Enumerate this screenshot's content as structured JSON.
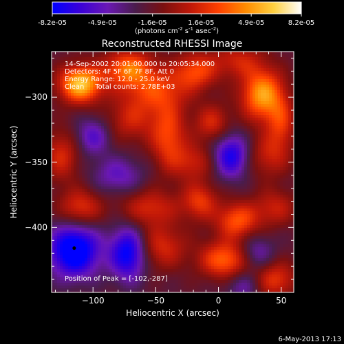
{
  "chart_data": {
    "type": "heatmap",
    "title": "Reconstructed RHESSI Image",
    "xlabel": "Heliocentric X (arcsec)",
    "ylabel": "Heliocentric Y (arcsec)",
    "xlim": [
      -133,
      60
    ],
    "ylim": [
      -450,
      -265
    ],
    "x_ticks": [
      -100,
      -50,
      0,
      50
    ],
    "y_ticks": [
      -300,
      -350,
      -400
    ],
    "colorbar": {
      "vmin": -8.2e-05,
      "vmax": 8.2e-05,
      "tick_labels": [
        "-8.2e-05",
        "-4.9e-05",
        "-1.6e-05",
        "1.6e-05",
        "4.9e-05",
        "8.2e-05"
      ],
      "unit_prefix": "(photons cm",
      "unit_exp1": "-2",
      "unit_mid": " s",
      "unit_exp2": "-1",
      "unit_mid2": " asec",
      "unit_exp3": "-2",
      "unit_suffix": ")",
      "stops": [
        "#0000ff",
        "#3a00d8",
        "#6a18b4",
        "#4a1c4c",
        "#7a1010",
        "#c01808",
        "#ff4000",
        "#ff8c00",
        "#ffd040",
        "#ffffff"
      ]
    },
    "annotations": [
      "14-Sep-2002 20:01:00.000 to 20:05:34.000",
      "Detectors: 4F 5F 6F 7F 8F, Att 0",
      "Energy Range: 12.0 - 25.0 keV",
      "Clean     Total counts: 2.78E+03"
    ],
    "peak_label": "Position of Peak = [-102,-287]",
    "marker": {
      "x": -115,
      "y": -416
    },
    "blobs": [
      {
        "x": -110,
        "y": -290,
        "sx": 12,
        "sy": 10,
        "v": 8.2e-05
      },
      {
        "x": -72,
        "y": -278,
        "sx": 14,
        "sy": 10,
        "v": 5.5e-05
      },
      {
        "x": -50,
        "y": -295,
        "sx": 18,
        "sy": 12,
        "v": 4e-05
      },
      {
        "x": -18,
        "y": -280,
        "sx": 12,
        "sy": 10,
        "v": 4.5e-05
      },
      {
        "x": 15,
        "y": -272,
        "sx": 14,
        "sy": 9,
        "v": 3e-05
      },
      {
        "x": 35,
        "y": -298,
        "sx": 12,
        "sy": 14,
        "v": 7e-05
      },
      {
        "x": 50,
        "y": -320,
        "sx": 8,
        "sy": 14,
        "v": 3.5e-05
      },
      {
        "x": -100,
        "y": -330,
        "sx": 10,
        "sy": 10,
        "v": -3.5e-05
      },
      {
        "x": -70,
        "y": -318,
        "sx": 14,
        "sy": 12,
        "v": 3e-05
      },
      {
        "x": -40,
        "y": -330,
        "sx": 10,
        "sy": 18,
        "v": 4.5e-05
      },
      {
        "x": -5,
        "y": -320,
        "sx": 10,
        "sy": 10,
        "v": 3.5e-05
      },
      {
        "x": 10,
        "y": -345,
        "sx": 10,
        "sy": 12,
        "v": -5.5e-05
      },
      {
        "x": -20,
        "y": -350,
        "sx": 12,
        "sy": 10,
        "v": 3e-05
      },
      {
        "x": 40,
        "y": -345,
        "sx": 12,
        "sy": 12,
        "v": 3e-05
      },
      {
        "x": -125,
        "y": -345,
        "sx": 10,
        "sy": 14,
        "v": 3.5e-05
      },
      {
        "x": -80,
        "y": -360,
        "sx": 14,
        "sy": 10,
        "v": -3e-05
      },
      {
        "x": -55,
        "y": -385,
        "sx": 16,
        "sy": 10,
        "v": 3.5e-05
      },
      {
        "x": -15,
        "y": -380,
        "sx": 10,
        "sy": 10,
        "v": 4e-05
      },
      {
        "x": 15,
        "y": -395,
        "sx": 12,
        "sy": 10,
        "v": 5e-05
      },
      {
        "x": 45,
        "y": -385,
        "sx": 12,
        "sy": 10,
        "v": 3e-05
      },
      {
        "x": -110,
        "y": -385,
        "sx": 12,
        "sy": 10,
        "v": 4e-05
      },
      {
        "x": -115,
        "y": -418,
        "sx": 14,
        "sy": 14,
        "v": -8e-05
      },
      {
        "x": -72,
        "y": -420,
        "sx": 10,
        "sy": 14,
        "v": -6.5e-05
      },
      {
        "x": -45,
        "y": -415,
        "sx": 14,
        "sy": 12,
        "v": 3.5e-05
      },
      {
        "x": 5,
        "y": -425,
        "sx": 14,
        "sy": 10,
        "v": 5.5e-05
      },
      {
        "x": 30,
        "y": -420,
        "sx": 10,
        "sy": 10,
        "v": -3e-05
      },
      {
        "x": 45,
        "y": -440,
        "sx": 12,
        "sy": 10,
        "v": 4e-05
      },
      {
        "x": 20,
        "y": -445,
        "sx": 10,
        "sy": 8,
        "v": -2.5e-05
      }
    ]
  },
  "footer": {
    "timestamp": "6-May-2013 17:13"
  }
}
